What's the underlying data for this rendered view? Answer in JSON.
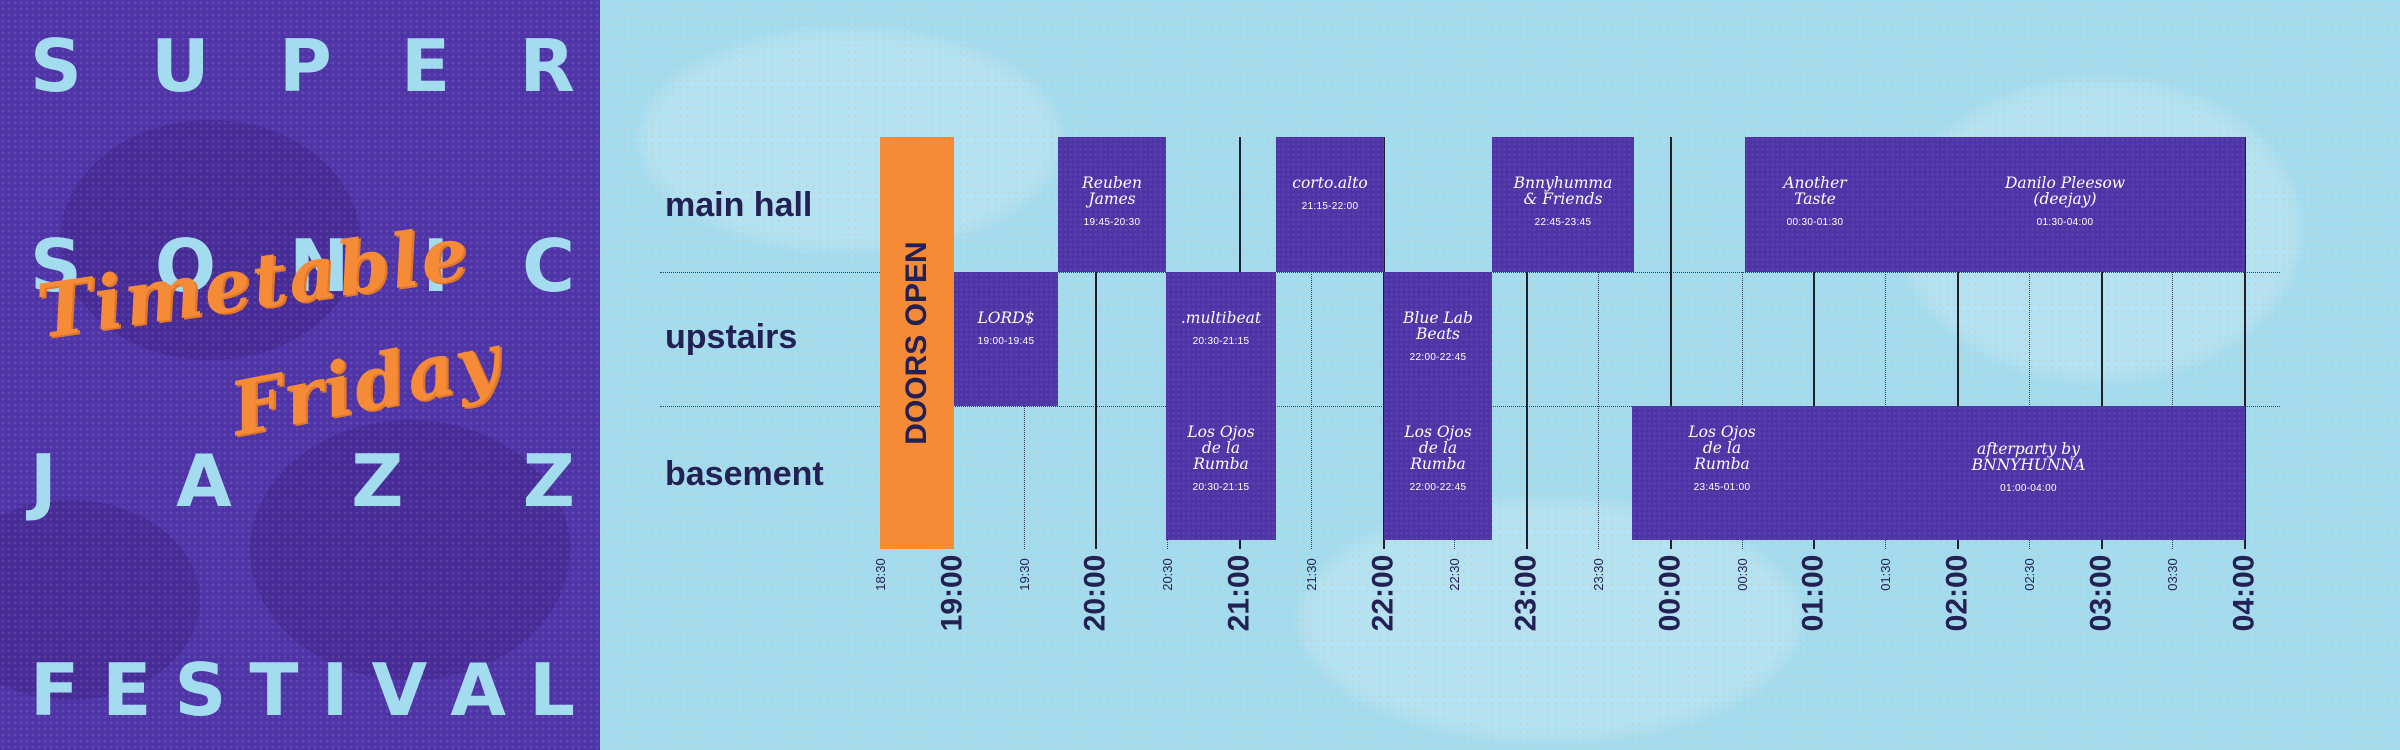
{
  "poster": {
    "letters_super": [
      "S",
      "U",
      "P",
      "E",
      "R"
    ],
    "letters_sonic": [
      "S",
      "O",
      "N",
      "I",
      "C"
    ],
    "letters_jazz": [
      "J",
      "A",
      "Z",
      "Z"
    ],
    "letters_festival": [
      "F",
      "E",
      "S",
      "T",
      "I",
      "V",
      "A",
      "L"
    ],
    "script_line1": "Timetable",
    "script_line2": "Friday"
  },
  "stages": [
    "main hall",
    "upstairs",
    "basement"
  ],
  "doors_label": "DOORS OPEN",
  "time_labels": [
    "18:30",
    "19:00",
    "19:30",
    "20:00",
    "20:30",
    "21:00",
    "21:30",
    "22:00",
    "22:30",
    "23:00",
    "23:30",
    "00:00",
    "00:30",
    "01:00",
    "01:30",
    "02:00",
    "02:30",
    "03:00",
    "03:30",
    "04:00"
  ],
  "performances": {
    "reuben": {
      "name": "Reuben\nJames",
      "time": "19:45-20:30"
    },
    "corto": {
      "name": "corto.alto",
      "time": "21:15-22:00"
    },
    "bnny": {
      "name": "Bnnyhumma\n& Friends",
      "time": "22:45-23:45"
    },
    "another": {
      "name": "Another\nTaste",
      "time": "00:30-01:30"
    },
    "danilo": {
      "name": "Danilo Pleesow\n(deejay)",
      "time": "01:30-04:00"
    },
    "lords": {
      "name": "LORD$",
      "time": "19:00-19:45"
    },
    "multibeat": {
      "name": ".multibeat",
      "time": "20:30-21:15"
    },
    "bluelab": {
      "name": "Blue Lab\nBeats",
      "time": "22:00-22:45"
    },
    "ojos1": {
      "name": "Los Ojos\nde la\nRumba",
      "time": "20:30-21:15"
    },
    "ojos2": {
      "name": "Los Ojos\nde la\nRumba",
      "time": "22:00-22:45"
    },
    "ojos3": {
      "name": "Los Ojos\nde la\nRumba",
      "time": "23:45-01:00"
    },
    "afterparty": {
      "name": "afterparty by\nBNNYHUNNA",
      "time": "01:00-04:00"
    }
  },
  "colors": {
    "purple": "#4e34a6",
    "sky": "#a3dcef",
    "orange": "#f58b37",
    "navy": "#232053"
  }
}
